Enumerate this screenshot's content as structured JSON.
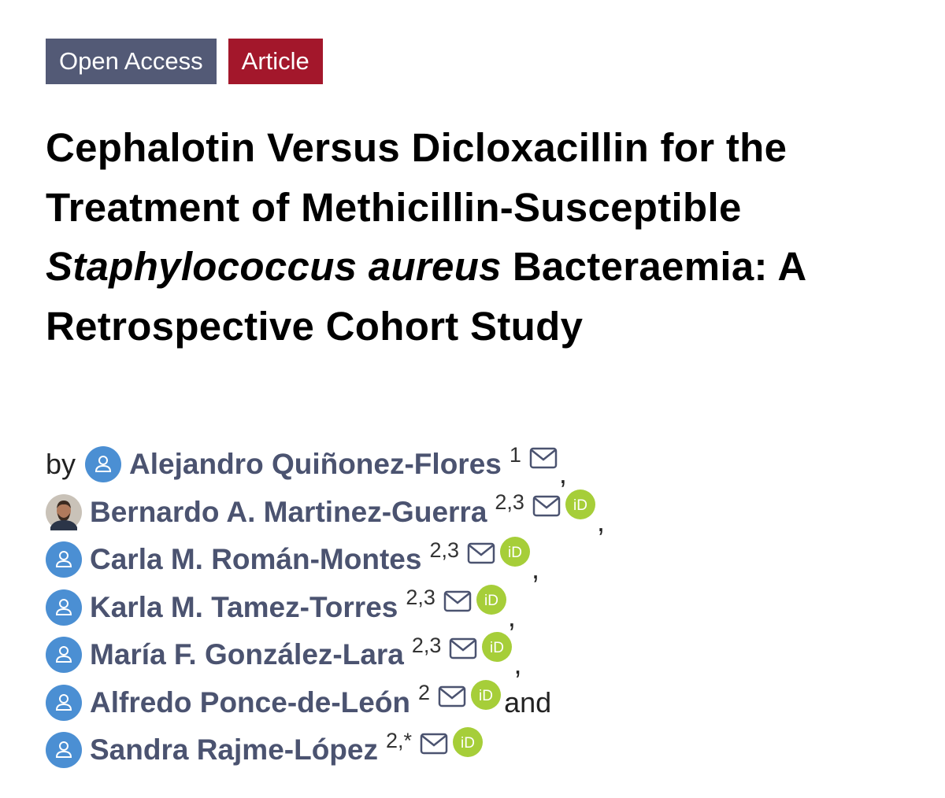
{
  "badges": [
    "Open Access",
    "Article"
  ],
  "title": {
    "before": "Cephalotin Versus Dicloxacillin for the Treatment of Methicillin-Susceptible",
    "italic": "Staphylococcus aureus",
    "after": "Bacteraemia: A Retrospective Cohort Study"
  },
  "by": "by",
  "orcid_label": "iD",
  "authors": [
    {
      "name": "Alejandro Quiñonez-Flores",
      "affiliations": "1",
      "avatar": "default",
      "orcid": false,
      "separator": ","
    },
    {
      "name": "Bernardo A. Martinez-Guerra",
      "affiliations": "2,3",
      "avatar": "photo",
      "orcid": true,
      "separator": ","
    },
    {
      "name": "Carla M. Román-Montes",
      "affiliations": "2,3",
      "avatar": "default",
      "orcid": true,
      "separator": ","
    },
    {
      "name": "Karla M. Tamez-Torres",
      "affiliations": "2,3",
      "avatar": "default",
      "orcid": true,
      "separator": ","
    },
    {
      "name": "María F. González-Lara",
      "affiliations": "2,3",
      "avatar": "default",
      "orcid": true,
      "separator": ","
    },
    {
      "name": "Alfredo Ponce-de-León",
      "affiliations": "2",
      "avatar": "default",
      "orcid": true,
      "separator": "and"
    },
    {
      "name": "Sandra Rajme-López",
      "affiliations": "2,*",
      "avatar": "default",
      "orcid": true
    }
  ]
}
